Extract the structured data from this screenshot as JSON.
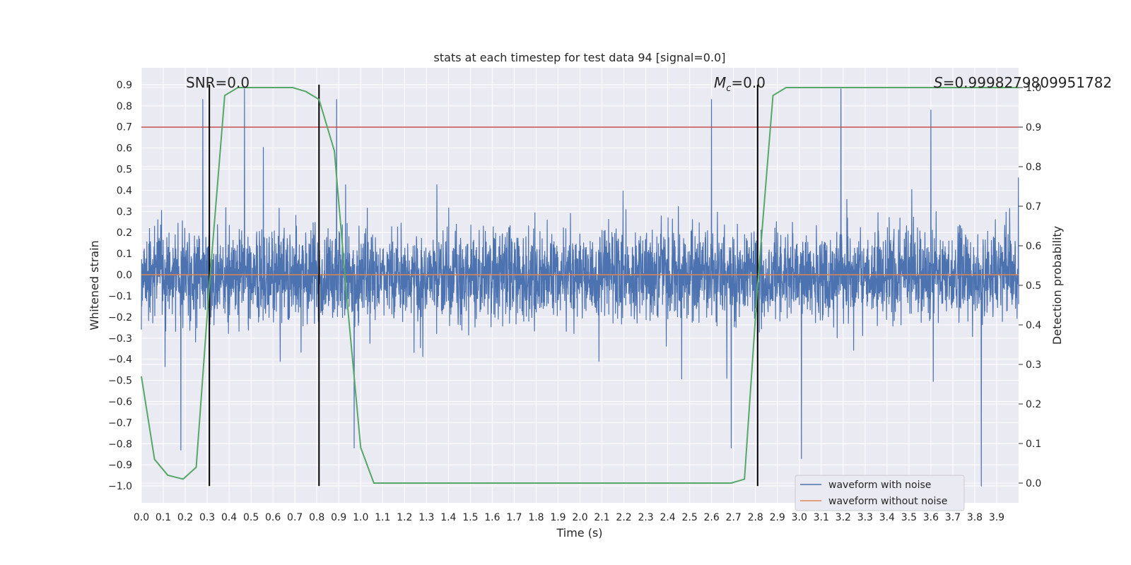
{
  "chart_data": {
    "type": "line",
    "title": "stats at each timestep for test data 94 [signal=0.0]",
    "xlabel": "Time (s)",
    "ylabel": "Whitened strain",
    "y2label": "Detection probability",
    "xlim": [
      0.0,
      4.0
    ],
    "ylim": [
      -1.08,
      0.98
    ],
    "y2lim": [
      -0.05,
      1.05
    ],
    "x_ticks": [
      "0.0",
      "0.1",
      "0.2",
      "0.3",
      "0.4",
      "0.5",
      "0.6",
      "0.7",
      "0.8",
      "0.9",
      "1.0",
      "1.1",
      "1.2",
      "1.3",
      "1.4",
      "1.5",
      "1.6",
      "1.7",
      "1.8",
      "1.9",
      "2.0",
      "2.1",
      "2.2",
      "2.3",
      "2.4",
      "2.5",
      "2.6",
      "2.7",
      "2.8",
      "2.9",
      "3.0",
      "3.1",
      "3.2",
      "3.3",
      "3.4",
      "3.5",
      "3.6",
      "3.7",
      "3.8",
      "3.9"
    ],
    "y_ticks": [
      "0.9",
      "0.8",
      "0.7",
      "0.6",
      "0.5",
      "0.4",
      "0.3",
      "0.2",
      "0.1",
      "0.0",
      "−0.1",
      "−0.2",
      "−0.3",
      "−0.4",
      "−0.5",
      "−0.6",
      "−0.7",
      "−0.8",
      "−0.9",
      "−1.0"
    ],
    "y2_ticks": [
      "1.0",
      "0.9",
      "0.8",
      "0.7",
      "0.6",
      "0.5",
      "0.4",
      "0.3",
      "0.2",
      "0.1",
      "0.0"
    ],
    "grid": true,
    "legend_position": "lower-right",
    "annotations": {
      "snr": "SNR=0.0",
      "mc": "M",
      "mc_sub": "c",
      "mc_value": "=0.0",
      "s": "S",
      "s_value": "=0.9998279809951782"
    },
    "threshold_y2": 0.9,
    "vertical_lines_x": [
      0.31,
      0.81,
      2.81
    ],
    "series": [
      {
        "name": "waveform with noise",
        "color": "#4c72b0",
        "axis": "left",
        "description": "dense whitened noise, roughly -0.8 to 0.85",
        "peaks_x": [
          0.28,
          0.47,
          0.89,
          2.6,
          3.19,
          3.6
        ],
        "peaks_y": [
          0.83,
          0.88,
          0.83,
          0.83,
          0.88,
          0.78
        ],
        "troughs_x": [
          0.18,
          0.97,
          2.69,
          3.01,
          3.83
        ],
        "troughs_y": [
          -0.83,
          -0.82,
          -0.82,
          -0.87,
          -1.0
        ]
      },
      {
        "name": "waveform without noise",
        "color": "#dd8452",
        "axis": "left",
        "x": [
          0.0,
          4.0
        ],
        "y": [
          0.0,
          0.0
        ]
      },
      {
        "name": "",
        "color": "#55a868",
        "axis": "right",
        "x": [
          0.0,
          0.06,
          0.12,
          0.19,
          0.25,
          0.31,
          0.38,
          0.44,
          0.5,
          0.56,
          0.62,
          0.69,
          0.75,
          0.81,
          0.88,
          0.94,
          1.0,
          1.06,
          1.12,
          1.25,
          1.5,
          2.0,
          2.5,
          2.69,
          2.75,
          2.81,
          2.88,
          2.94,
          3.0,
          3.25,
          3.5,
          3.75,
          4.0
        ],
        "y": [
          0.27,
          0.06,
          0.02,
          0.01,
          0.04,
          0.5,
          0.98,
          1.0,
          1.0,
          1.0,
          1.0,
          1.0,
          0.99,
          0.97,
          0.84,
          0.45,
          0.09,
          0.0,
          0.0,
          0.0,
          0.0,
          0.0,
          0.0,
          0.0,
          0.01,
          0.5,
          0.98,
          1.0,
          1.0,
          1.0,
          1.0,
          1.0,
          1.0
        ]
      }
    ]
  },
  "colors": {
    "background": "#eaeaf2",
    "grid": "#ffffff",
    "threshold": "#c44e52",
    "vline": "#000000"
  }
}
